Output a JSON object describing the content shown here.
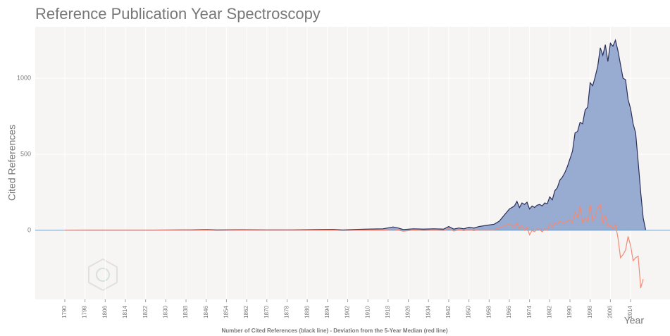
{
  "chart_data": {
    "type": "area",
    "title": "Reference Publication Year Spectroscopy",
    "ylabel": "Cited References",
    "xlabel": "Year",
    "caption": "Number of Cited References (black line) - Deviation from the 5-Year Median (red line)",
    "x": [
      1790,
      1800,
      1810,
      1820,
      1830,
      1840,
      1846,
      1850,
      1860,
      1870,
      1880,
      1890,
      1896,
      1900,
      1906,
      1910,
      1916,
      1920,
      1922,
      1924,
      1928,
      1932,
      1936,
      1940,
      1942,
      1944,
      1946,
      1948,
      1950,
      1952,
      1954,
      1956,
      1958,
      1960,
      1962,
      1964,
      1966,
      1968,
      1969,
      1970,
      1971,
      1972,
      1973,
      1974,
      1975,
      1976,
      1977,
      1978,
      1979,
      1980,
      1981,
      1982,
      1983,
      1984,
      1985,
      1986,
      1987,
      1988,
      1989,
      1990,
      1991,
      1992,
      1993,
      1994,
      1995,
      1996,
      1997,
      1998,
      1999,
      2000,
      2001,
      2002,
      2003,
      2004,
      2005,
      2006,
      2007,
      2008,
      2009,
      2010,
      2011,
      2012,
      2013,
      2014,
      2015,
      2016,
      2017,
      2018,
      2019,
      2020
    ],
    "series": [
      {
        "color": "#2b2f5a",
        "fill": "#98acd1",
        "values": [
          0,
          1,
          1,
          1,
          2,
          3,
          5,
          3,
          4,
          3,
          3,
          5,
          6,
          3,
          6,
          8,
          10,
          22,
          15,
          5,
          10,
          8,
          10,
          8,
          25,
          8,
          15,
          10,
          20,
          15,
          25,
          30,
          35,
          40,
          60,
          100,
          140,
          160,
          190,
          150,
          180,
          170,
          185,
          140,
          160,
          150,
          165,
          170,
          160,
          180,
          175,
          220,
          200,
          260,
          280,
          330,
          350,
          380,
          420,
          470,
          520,
          640,
          650,
          710,
          700,
          790,
          810,
          970,
          950,
          1010,
          1080,
          1200,
          1150,
          1220,
          1110,
          1230,
          1210,
          1250,
          1180,
          1090,
          1000,
          990,
          860,
          800,
          700,
          640,
          450,
          250,
          80,
          0
        ]
      },
      {
        "color": "#f08b78",
        "values": [
          0,
          0,
          0,
          0,
          1,
          0,
          2,
          -1,
          1,
          0,
          0,
          1,
          2,
          -2,
          1,
          2,
          1,
          8,
          2,
          -6,
          2,
          -1,
          1,
          -1,
          12,
          -5,
          4,
          -2,
          6,
          -2,
          6,
          5,
          5,
          5,
          15,
          30,
          40,
          20,
          50,
          10,
          30,
          0,
          20,
          -30,
          0,
          -10,
          10,
          5,
          -10,
          10,
          0,
          40,
          20,
          50,
          40,
          60,
          50,
          50,
          60,
          70,
          50,
          120,
          80,
          160,
          50,
          80,
          60,
          170,
          60,
          90,
          150,
          170,
          40,
          100,
          30,
          30,
          10,
          40,
          -50,
          -180,
          -160,
          -130,
          -40,
          -100,
          -200,
          -180,
          -170,
          -380,
          -320,
          null
        ]
      }
    ],
    "zero_line_color": "#7fb2d8",
    "xlim": [
      1778.3,
      2029.6
    ],
    "ylim": [
      -454,
      1338
    ],
    "xticks": [
      1790,
      1798,
      1806,
      1814,
      1822,
      1830,
      1838,
      1846,
      1854,
      1862,
      1870,
      1878,
      1886,
      1894,
      1902,
      1910,
      1918,
      1926,
      1934,
      1942,
      1950,
      1958,
      1966,
      1974,
      1982,
      1990,
      1998,
      2006,
      2014
    ],
    "yticks": [
      0,
      500,
      1000
    ],
    "grid": true
  }
}
